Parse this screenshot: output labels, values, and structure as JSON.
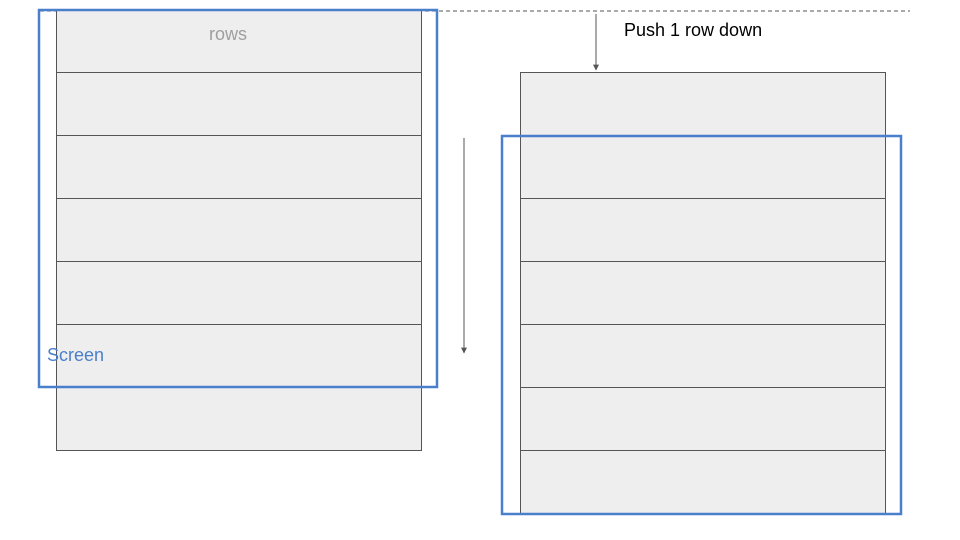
{
  "labels": {
    "rows": "rows",
    "screen": "Screen",
    "push": "Push 1 row down"
  },
  "colors": {
    "row_fill": "#eeeeee",
    "row_stroke": "#555555",
    "screen_stroke": "#4a7fcb",
    "screen_label": "#4a7fcb",
    "arrow": "#555555",
    "dashed_line": "#555555"
  },
  "diagram": {
    "before_row_count": 7,
    "after_row_count": 7,
    "screen_rows_visible": 6,
    "push_rows": 1
  }
}
